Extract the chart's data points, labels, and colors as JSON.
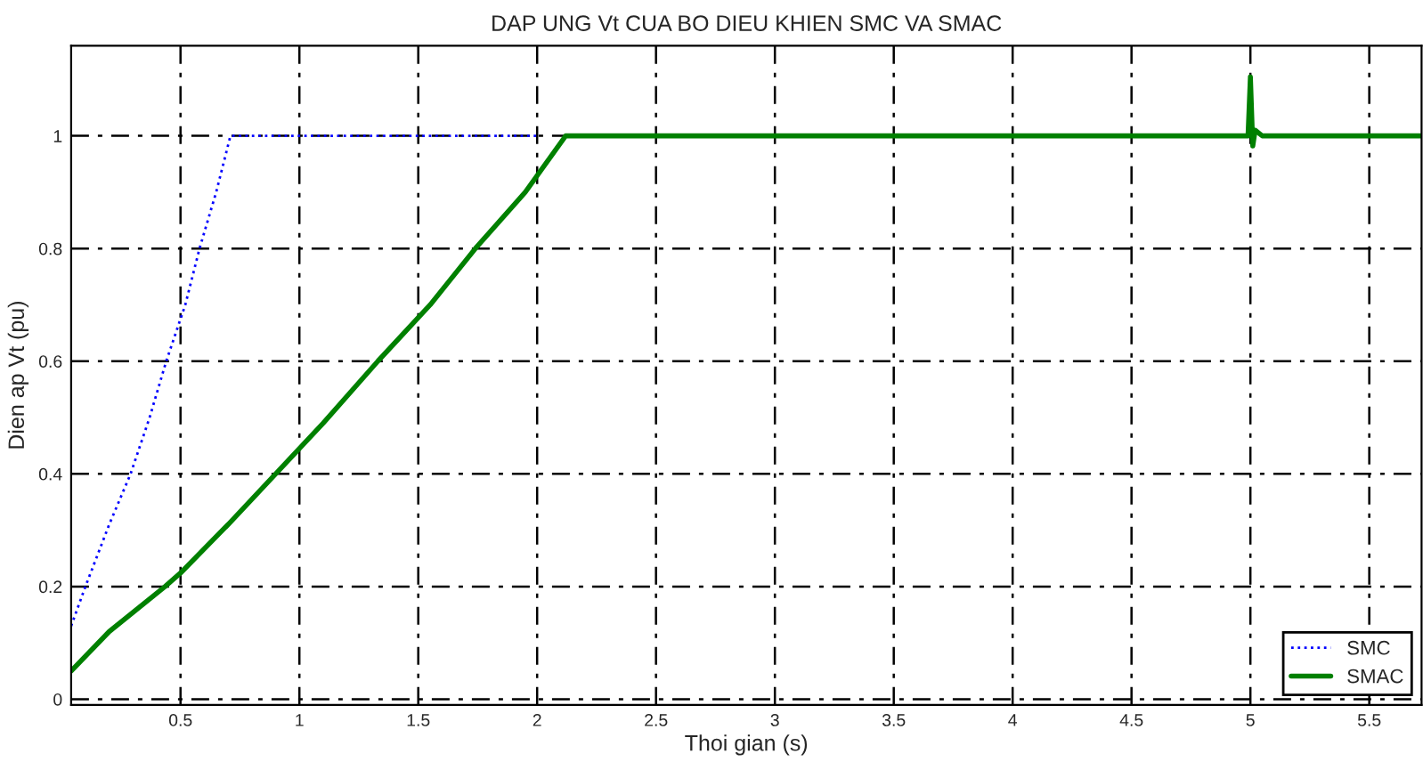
{
  "chart_data": {
    "type": "line",
    "title": "DAP UNG Vt CUA BO DIEU KHIEN SMC VA SMAC",
    "xlabel": "Thoi gian (s)",
    "ylabel": "Dien ap Vt (pu)",
    "series": [
      {
        "name": "SMC",
        "color": "#0000ff",
        "line_style": "dotted",
        "x": [
          0.04,
          0.1,
          0.2,
          0.29,
          0.37,
          0.44,
          0.52,
          0.58,
          0.65,
          0.71,
          1.0,
          1.5,
          2.0
        ],
        "values": [
          0.13,
          0.2,
          0.31,
          0.4,
          0.5,
          0.6,
          0.7,
          0.8,
          0.9,
          1.0,
          1.0,
          1.0,
          1.0
        ]
      },
      {
        "name": "SMAC",
        "color": "#008000",
        "line_style": "solid",
        "x": [
          0.04,
          0.2,
          0.435,
          0.5,
          0.7,
          0.9,
          1.1,
          1.33,
          1.55,
          1.74,
          1.95,
          2.12,
          2.5,
          3.0,
          3.5,
          4.0,
          4.5,
          4.99,
          5.0,
          5.01,
          5.02,
          5.05,
          5.5,
          5.72
        ],
        "values": [
          0.05,
          0.12,
          0.2,
          0.224,
          0.31,
          0.4,
          0.49,
          0.6,
          0.7,
          0.8,
          0.9,
          1.0,
          1.0,
          1.0,
          1.0,
          1.0,
          1.0,
          1.0,
          1.105,
          0.982,
          1.01,
          1.0,
          1.0,
          1.0
        ]
      }
    ],
    "xlim": [
      0.04,
      5.72
    ],
    "ylim": [
      -0.01,
      1.16
    ],
    "xticks": [
      0.5,
      1,
      1.5,
      2,
      2.5,
      3,
      3.5,
      4,
      4.5,
      5,
      5.5
    ],
    "yticks": [
      0,
      0.2,
      0.4,
      0.6,
      0.8,
      1
    ],
    "grid": true,
    "legend": "bottom right"
  }
}
